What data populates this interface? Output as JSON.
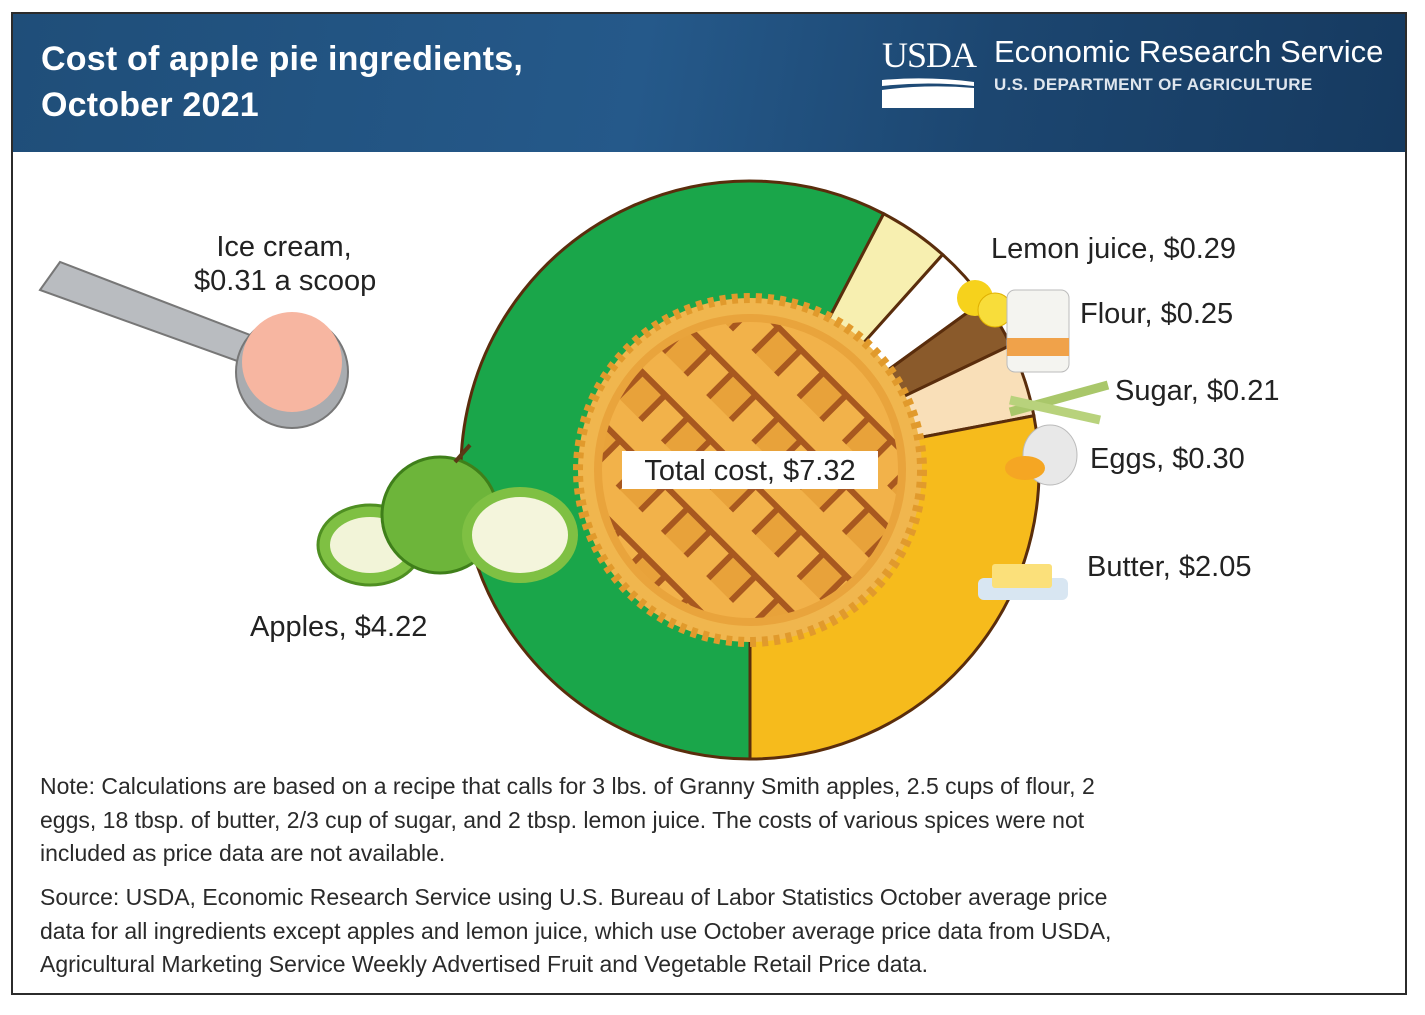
{
  "header": {
    "title_lines": [
      "Cost of apple pie ingredients,",
      "October 2021"
    ],
    "logo_text": "USDA",
    "agency": "Economic Research Service",
    "department": "U.S. DEPARTMENT OF AGRICULTURE"
  },
  "chart_data": {
    "type": "pie",
    "title": "Cost of apple pie ingredients, October 2021",
    "center_label": "Total cost, $7.32",
    "total": 7.32,
    "slices": [
      {
        "name": "Apples",
        "value": 4.22,
        "label": "Apples, $4.22",
        "color": "#1aa64a"
      },
      {
        "name": "Lemon juice",
        "value": 0.29,
        "label": "Lemon juice, $0.29",
        "color": "#f7efb0"
      },
      {
        "name": "Flour",
        "value": 0.25,
        "label": "Flour, $0.25",
        "color": "#ffffff"
      },
      {
        "name": "Sugar",
        "value": 0.21,
        "label": "Sugar, $0.21",
        "color": "#8a5a2b"
      },
      {
        "name": "Eggs",
        "value": 0.3,
        "label": "Eggs, $0.30",
        "color": "#f9dfb8"
      },
      {
        "name": "Butter",
        "value": 2.05,
        "label": "Butter, $2.05",
        "color": "#f6bb1c"
      }
    ],
    "annotation": {
      "name": "Ice cream",
      "value": 0.31,
      "label_lines": [
        "Ice cream,",
        "$0.31 a scoop"
      ]
    }
  },
  "notes": {
    "note_lines": [
      "Note: Calculations are based on a recipe that calls for 3 lbs. of Granny Smith apples, 2.5 cups of flour, 2",
      "eggs, 18 tbsp. of butter, 2/3 cup of sugar, and 2 tbsp. lemon juice. The costs of various spices were not",
      "included as price data are not available."
    ],
    "source_lines": [
      "Source: USDA, Economic Research Service using U.S. Bureau of Labor Statistics October average price",
      "data for all ingredients except apples and lemon juice, which use October average price data from USDA,",
      "Agricultural Marketing Service Weekly Advertised Fruit and Vegetable Retail Price data."
    ]
  }
}
